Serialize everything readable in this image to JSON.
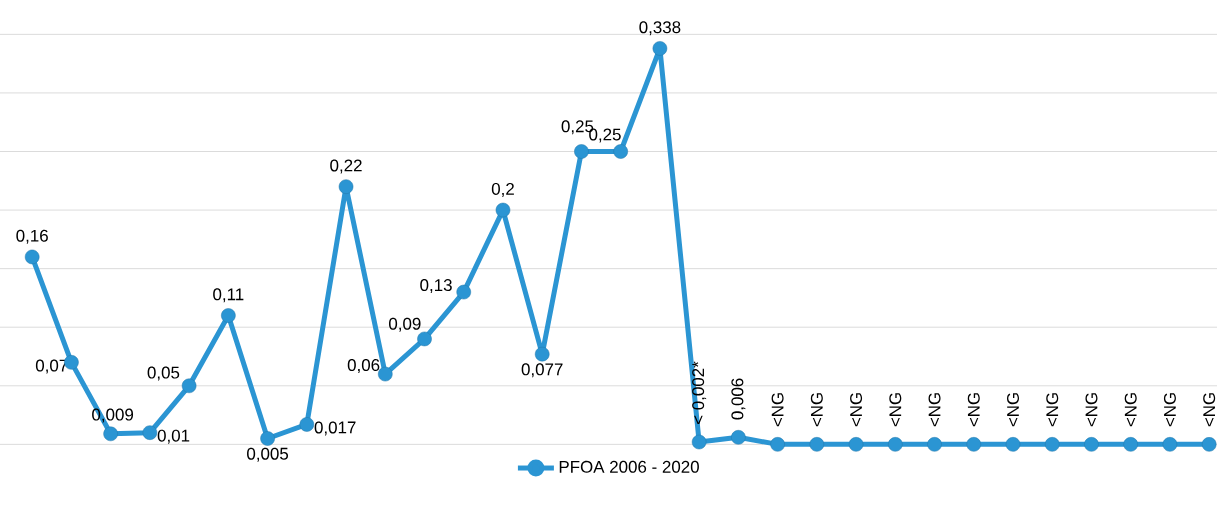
{
  "chart_data": {
    "type": "line",
    "categories": [
      null,
      null,
      null,
      null,
      null,
      null,
      null,
      null,
      null,
      null,
      null,
      null,
      null,
      null,
      null,
      null,
      null,
      null,
      null,
      null,
      null,
      null,
      null,
      null,
      null,
      null,
      null,
      null,
      null,
      null,
      null
    ],
    "series": [
      {
        "name": "PFOA 2006 - 2020",
        "color": "#2b95d3",
        "values": [
          0.16,
          0.07,
          0.009,
          0.01,
          0.05,
          0.11,
          0.005,
          0.017,
          0.22,
          0.06,
          0.09,
          0.13,
          0.2,
          0.077,
          0.25,
          0.25,
          0.338,
          0.002,
          0.006,
          0,
          0,
          0,
          0,
          0,
          0,
          0,
          0,
          0,
          0,
          0,
          0
        ],
        "value_labels": [
          "0,16",
          "0,07",
          "0,009",
          "0,01",
          "0,05",
          "0,11",
          "0,005",
          "0,017",
          "0,22",
          "0,06",
          "0,09",
          "0,13",
          "0,2",
          "0,077",
          "0,25",
          "0,25",
          "0,338",
          "< 0,002*",
          "0,006",
          "<NG",
          "<NG",
          "<NG",
          "<NG",
          "<NG",
          "<NG",
          "<NG",
          "<NG",
          "<NG",
          "<NG",
          "<NG",
          "<NG"
        ]
      }
    ],
    "ylim": [
      0,
      0.35
    ],
    "yticks": [
      {
        "value": 0,
        "label": null
      },
      {
        "value": 0.05,
        "label": null
      },
      {
        "value": 0.1,
        "label": null
      },
      {
        "value": 0.15,
        "label": null
      },
      {
        "value": 0.2,
        "label": null
      },
      {
        "value": 0.25,
        "label": null
      },
      {
        "value": 0.3,
        "label": null
      },
      {
        "value": 0.35,
        "label": null
      }
    ],
    "grid": "y",
    "legend": "bottom",
    "marker": "circle",
    "line_style": "solid"
  }
}
